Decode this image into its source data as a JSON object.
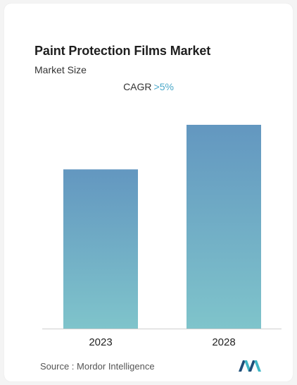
{
  "chart_data": {
    "type": "bar",
    "title": "Paint Protection Films Market",
    "subtitle": "Market Size",
    "categories": [
      "2023",
      "2028"
    ],
    "values": [
      1.0,
      1.28
    ],
    "annotation": {
      "label": "CAGR",
      "value": ">5%"
    },
    "xlabel": "",
    "ylabel": "",
    "grid": false,
    "legend": "none"
  },
  "source": "Source :  Mordor Intelligence",
  "colors": {
    "bar_top": "#6397c0",
    "bar_bottom": "#7fc4cb",
    "cagr_value": "#4aa8c9",
    "logo_dark": "#1f4e79",
    "logo_light": "#3fb6c6"
  },
  "icons": {
    "brand_logo": "mordor-intelligence-logo"
  }
}
